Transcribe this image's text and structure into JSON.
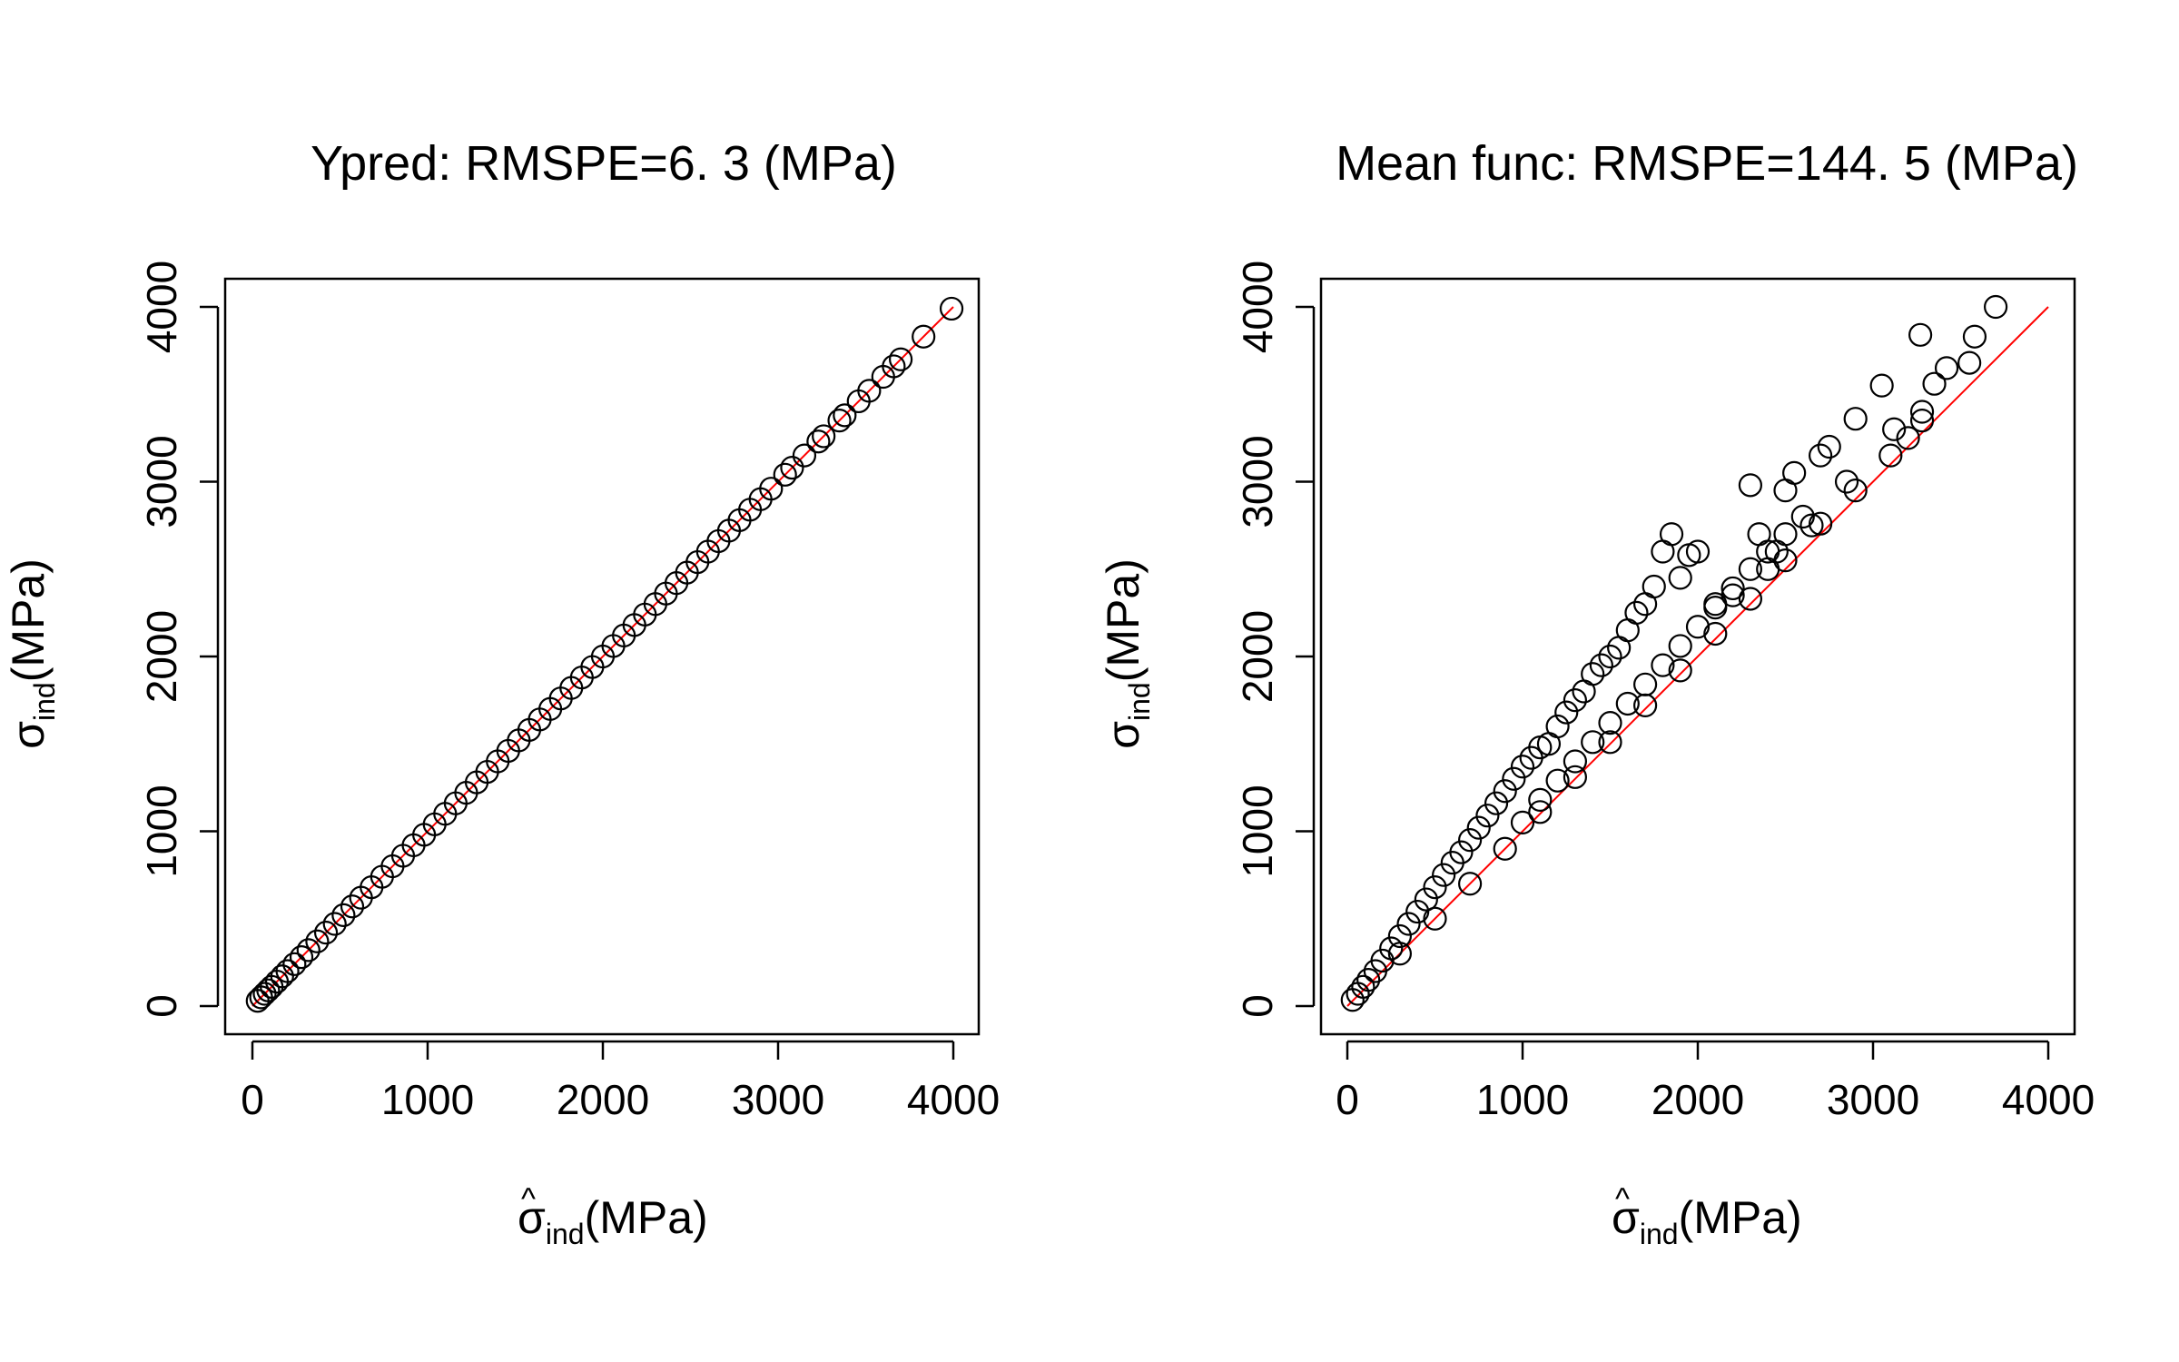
{
  "chart_data": [
    {
      "type": "scatter",
      "title": "Ypred: RMSPE=6. 3 (MPa)",
      "xlabel_main": "σ",
      "xlabel_hat": "^",
      "xlabel_sub": "ind",
      "xlabel_unit": "(MPa)",
      "ylabel_main": "σ",
      "ylabel_sub": "ind",
      "ylabel_unit": "(MPa)",
      "xlim": [
        0,
        4000
      ],
      "ylim": [
        0,
        4000
      ],
      "xticks": [
        0,
        1000,
        2000,
        3000,
        4000
      ],
      "yticks": [
        0,
        1000,
        2000,
        3000,
        4000
      ],
      "reference_line": {
        "from": [
          0,
          0
        ],
        "to": [
          4000,
          4000
        ],
        "color": "#ff0000"
      },
      "marker": "open-circle",
      "series": [
        {
          "points": [
            [
              30,
              30
            ],
            [
              50,
              50
            ],
            [
              70,
              70
            ],
            [
              90,
              90
            ],
            [
              110,
              110
            ],
            [
              140,
              140
            ],
            [
              170,
              170
            ],
            [
              200,
              200
            ],
            [
              240,
              240
            ],
            [
              280,
              280
            ],
            [
              320,
              320
            ],
            [
              370,
              370
            ],
            [
              420,
              420
            ],
            [
              470,
              470
            ],
            [
              520,
              520
            ],
            [
              570,
              570
            ],
            [
              620,
              620
            ],
            [
              680,
              680
            ],
            [
              740,
              740
            ],
            [
              800,
              800
            ],
            [
              860,
              860
            ],
            [
              920,
              920
            ],
            [
              980,
              980
            ],
            [
              1040,
              1040
            ],
            [
              1100,
              1100
            ],
            [
              1160,
              1160
            ],
            [
              1220,
              1220
            ],
            [
              1280,
              1280
            ],
            [
              1340,
              1340
            ],
            [
              1400,
              1400
            ],
            [
              1460,
              1460
            ],
            [
              1520,
              1520
            ],
            [
              1580,
              1580
            ],
            [
              1640,
              1640
            ],
            [
              1700,
              1700
            ],
            [
              1760,
              1760
            ],
            [
              1820,
              1820
            ],
            [
              1880,
              1880
            ],
            [
              1940,
              1940
            ],
            [
              2000,
              2000
            ],
            [
              2060,
              2060
            ],
            [
              2120,
              2120
            ],
            [
              2180,
              2180
            ],
            [
              2240,
              2240
            ],
            [
              2300,
              2300
            ],
            [
              2360,
              2360
            ],
            [
              2420,
              2420
            ],
            [
              2480,
              2480
            ],
            [
              2540,
              2540
            ],
            [
              2600,
              2600
            ],
            [
              2660,
              2660
            ],
            [
              2720,
              2720
            ],
            [
              2780,
              2780
            ],
            [
              2840,
              2840
            ],
            [
              2900,
              2900
            ],
            [
              2960,
              2960
            ],
            [
              3040,
              3040
            ],
            [
              3080,
              3080
            ],
            [
              3150,
              3150
            ],
            [
              3230,
              3230
            ],
            [
              3260,
              3260
            ],
            [
              3350,
              3350
            ],
            [
              3380,
              3380
            ],
            [
              3460,
              3460
            ],
            [
              3520,
              3520
            ],
            [
              3600,
              3600
            ],
            [
              3660,
              3660
            ],
            [
              3700,
              3700
            ],
            [
              3830,
              3830
            ],
            [
              3990,
              3990
            ]
          ]
        }
      ]
    },
    {
      "type": "scatter",
      "title": "Mean func: RMSPE=144. 5 (MPa)",
      "xlabel_main": "σ",
      "xlabel_hat": "^",
      "xlabel_sub": "ind",
      "xlabel_unit": "(MPa)",
      "ylabel_main": "σ",
      "ylabel_sub": "ind",
      "ylabel_unit": "(MPa)",
      "xlim": [
        0,
        4000
      ],
      "ylim": [
        0,
        4000
      ],
      "xticks": [
        0,
        1000,
        2000,
        3000,
        4000
      ],
      "yticks": [
        0,
        1000,
        2000,
        3000,
        4000
      ],
      "reference_line": {
        "from": [
          0,
          0
        ],
        "to": [
          4000,
          4000
        ],
        "color": "#ff0000"
      },
      "marker": "open-circle",
      "series": [
        {
          "points": [
            [
              30,
              35
            ],
            [
              60,
              70
            ],
            [
              90,
              110
            ],
            [
              120,
              150
            ],
            [
              160,
              200
            ],
            [
              200,
              260
            ],
            [
              250,
              330
            ],
            [
              300,
              400
            ],
            [
              350,
              470
            ],
            [
              400,
              540
            ],
            [
              450,
              610
            ],
            [
              500,
              680
            ],
            [
              550,
              750
            ],
            [
              600,
              820
            ],
            [
              650,
              880
            ],
            [
              700,
              950
            ],
            [
              750,
              1020
            ],
            [
              800,
              1090
            ],
            [
              850,
              1160
            ],
            [
              900,
              1230
            ],
            [
              950,
              1300
            ],
            [
              1000,
              1370
            ],
            [
              1050,
              1420
            ],
            [
              1100,
              1480
            ],
            [
              1150,
              1500
            ],
            [
              1200,
              1600
            ],
            [
              1250,
              1680
            ],
            [
              1300,
              1750
            ],
            [
              1350,
              1800
            ],
            [
              1400,
              1900
            ],
            [
              1450,
              1950
            ],
            [
              1500,
              2000
            ],
            [
              1550,
              2050
            ],
            [
              1600,
              2150
            ],
            [
              1650,
              2250
            ],
            [
              1700,
              2300
            ],
            [
              1750,
              2400
            ],
            [
              1800,
              2600
            ],
            [
              1850,
              2700
            ],
            [
              1900,
              2450
            ],
            [
              1950,
              2580
            ],
            [
              2000,
              2600
            ],
            [
              2100,
              2300
            ],
            [
              2200,
              2350
            ],
            [
              2300,
              2980
            ],
            [
              2350,
              2700
            ],
            [
              2400,
              2500
            ],
            [
              2450,
              2600
            ],
            [
              2500,
              2950
            ],
            [
              2550,
              3050
            ],
            [
              2600,
              2800
            ],
            [
              2650,
              2750
            ],
            [
              2700,
              3150
            ],
            [
              2750,
              3200
            ],
            [
              2850,
              3000
            ],
            [
              2900,
              3360
            ],
            [
              3050,
              3550
            ],
            [
              3120,
              3300
            ],
            [
              3200,
              3250
            ],
            [
              3270,
              3840
            ],
            [
              3280,
              3400
            ],
            [
              3350,
              3560
            ],
            [
              3420,
              3650
            ],
            [
              3580,
              3830
            ],
            [
              3700,
              4000
            ],
            [
              300,
              300
            ],
            [
              500,
              500
            ],
            [
              700,
              700
            ],
            [
              900,
              900
            ],
            [
              1100,
              1110
            ],
            [
              1300,
              1310
            ],
            [
              1500,
              1510
            ],
            [
              1700,
              1720
            ],
            [
              1900,
              1920
            ],
            [
              2100,
              2130
            ],
            [
              2300,
              2330
            ],
            [
              2500,
              2550
            ],
            [
              2700,
              2760
            ],
            [
              2900,
              2950
            ],
            [
              3100,
              3150
            ],
            [
              3280,
              3350
            ],
            [
              3550,
              3680
            ],
            [
              1000,
              1050
            ],
            [
              1100,
              1180
            ],
            [
              1200,
              1290
            ],
            [
              1300,
              1400
            ],
            [
              1400,
              1510
            ],
            [
              1500,
              1620
            ],
            [
              1600,
              1730
            ],
            [
              1700,
              1840
            ],
            [
              1800,
              1950
            ],
            [
              1900,
              2060
            ],
            [
              2000,
              2170
            ],
            [
              2100,
              2280
            ],
            [
              2200,
              2390
            ],
            [
              2300,
              2500
            ],
            [
              2400,
              2600
            ],
            [
              2500,
              2700
            ]
          ]
        }
      ]
    }
  ]
}
